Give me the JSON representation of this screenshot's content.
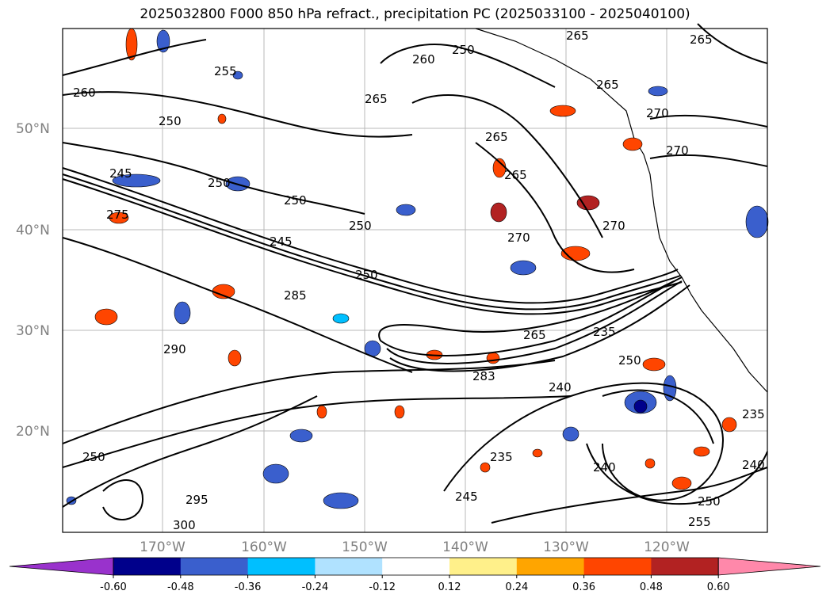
{
  "title": "2025032800 F000 850 hPa refract., precipitation PC (2025033100 - 2025040100)",
  "map": {
    "lat_labels": [
      "50°N",
      "40°N",
      "30°N",
      "20°N"
    ],
    "lon_labels": [
      "170°W",
      "160°W",
      "150°W",
      "140°W",
      "130°W",
      "120°W"
    ],
    "contour_labels": [
      "265",
      "265",
      "255",
      "250",
      "260",
      "250",
      "265",
      "265",
      "270",
      "260",
      "250",
      "265",
      "265",
      "245",
      "250",
      "250",
      "275",
      "270",
      "270",
      "270",
      "245",
      "250",
      "285",
      "265",
      "290",
      "235",
      "250",
      "283",
      "240",
      "250",
      "235",
      "240",
      "240",
      "235",
      "255",
      "250",
      "295",
      "300",
      "245"
    ]
  },
  "colorbar": {
    "tick_labels": [
      "-0.60",
      "-0.48",
      "-0.36",
      "-0.24",
      "-0.12",
      "0.12",
      "0.24",
      "0.36",
      "0.48",
      "0.60"
    ],
    "colors": [
      "#9932cc",
      "#00008b",
      "#3a5fcd",
      "#00bfff",
      "#b0e2ff",
      "#ffffff",
      "#fff08a",
      "#ffa500",
      "#ff4500",
      "#b22222",
      "#ff88aa"
    ],
    "extend": "both"
  }
}
